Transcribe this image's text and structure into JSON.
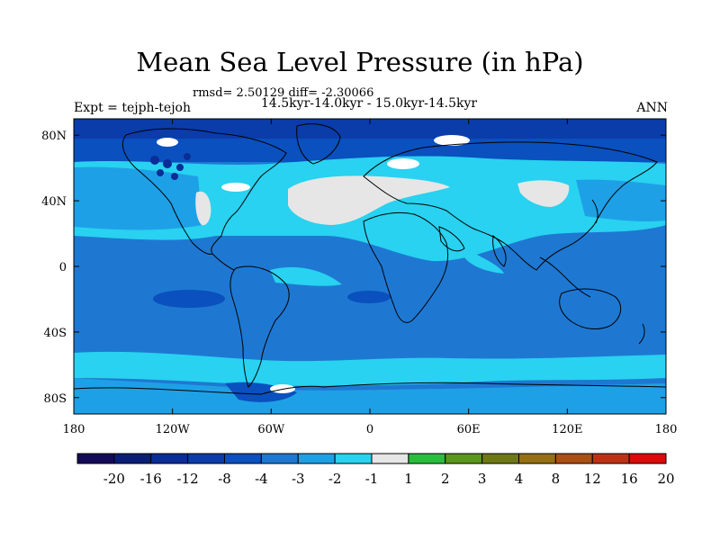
{
  "title": "Mean Sea Level Pressure (in hPa)",
  "stats_line": "rmsd= 2.50129 diff= -2.30066",
  "period_line": "14.5kyr-14.0kyr - 15.0kyr-14.5kyr",
  "experiment_label": "Expt = tejph-tejoh",
  "season_label": "ANN",
  "lat_ticks": [
    {
      "value": 80,
      "label": "80N"
    },
    {
      "value": 40,
      "label": "40N"
    },
    {
      "value": 0,
      "label": "0"
    },
    {
      "value": -40,
      "label": "40S"
    },
    {
      "value": -80,
      "label": "80S"
    }
  ],
  "lon_ticks": [
    {
      "value": -180,
      "label": "180"
    },
    {
      "value": -120,
      "label": "120W"
    },
    {
      "value": -60,
      "label": "60W"
    },
    {
      "value": 0,
      "label": "0"
    },
    {
      "value": 60,
      "label": "60E"
    },
    {
      "value": 120,
      "label": "120E"
    },
    {
      "value": 180,
      "label": "180"
    }
  ],
  "colorbar": {
    "colors": [
      "#140a5a",
      "#0a1e78",
      "#0a2d96",
      "#0a3caa",
      "#0a50be",
      "#1e78d2",
      "#1ea0e6",
      "#28d2f0",
      "#e6e6e6",
      "#28be3c",
      "#5a961e",
      "#6e7814",
      "#966e14",
      "#aa5014",
      "#be3214",
      "#dc0a0a"
    ],
    "labels": [
      "-20",
      "-16",
      "-12",
      "-8",
      "-4",
      "-3",
      "-2",
      "-1",
      "1",
      "2",
      "3",
      "4",
      "8",
      "12",
      "16",
      "20"
    ]
  },
  "map": {
    "ocean_base_color": "#1e78d2",
    "field_colors": {
      "light": "#28d2f0",
      "mid": "#1ea0e6",
      "dark": "#0a50be",
      "darker": "#0a3caa",
      "grey": "#e6e6e6",
      "white": "#ffffff",
      "deep": "#0a2d96"
    }
  }
}
